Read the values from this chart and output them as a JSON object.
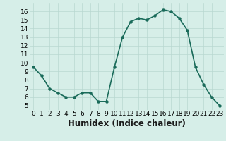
{
  "x": [
    0,
    1,
    2,
    3,
    4,
    5,
    6,
    7,
    8,
    9,
    10,
    11,
    12,
    13,
    14,
    15,
    16,
    17,
    18,
    19,
    20,
    21,
    22,
    23
  ],
  "y": [
    9.5,
    8.5,
    7.0,
    6.5,
    6.0,
    6.0,
    6.5,
    6.5,
    5.5,
    5.5,
    9.5,
    13.0,
    14.8,
    15.2,
    15.0,
    15.5,
    16.2,
    16.0,
    15.2,
    13.8,
    9.5,
    7.5,
    6.0,
    5.0
  ],
  "xlabel": "Humidex (Indice chaleur)",
  "ylim": [
    4.5,
    17.0
  ],
  "xlim": [
    -0.5,
    23.5
  ],
  "yticks": [
    5,
    6,
    7,
    8,
    9,
    10,
    11,
    12,
    13,
    14,
    15,
    16
  ],
  "xticks": [
    0,
    1,
    2,
    3,
    4,
    5,
    6,
    7,
    8,
    9,
    10,
    11,
    12,
    13,
    14,
    15,
    16,
    17,
    18,
    19,
    20,
    21,
    22,
    23
  ],
  "xtick_labels": [
    "0",
    "1",
    "2",
    "3",
    "4",
    "5",
    "6",
    "7",
    "8",
    "9",
    "10",
    "11",
    "12",
    "13",
    "14",
    "15",
    "16",
    "17",
    "18",
    "19",
    "20",
    "21",
    "22",
    "23"
  ],
  "line_color": "#1a6b5a",
  "marker": "o",
  "marker_size": 2.2,
  "bg_color": "#d6eee8",
  "grid_color": "#b8d8d0",
  "tick_fontsize": 6.5,
  "xlabel_fontsize": 8.5,
  "line_width": 1.2
}
